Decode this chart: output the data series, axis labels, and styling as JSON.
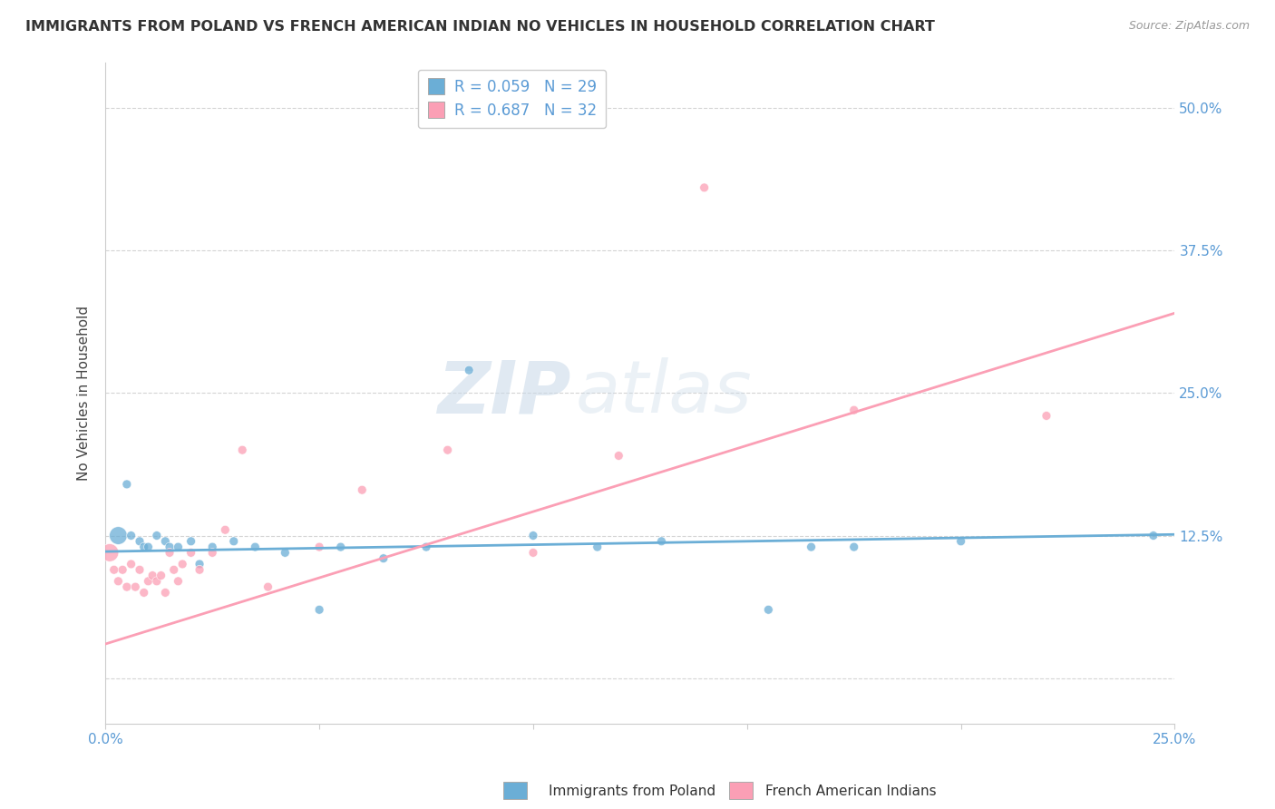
{
  "title": "IMMIGRANTS FROM POLAND VS FRENCH AMERICAN INDIAN NO VEHICLES IN HOUSEHOLD CORRELATION CHART",
  "source": "Source: ZipAtlas.com",
  "ylabel": "No Vehicles in Household",
  "xlim": [
    0.0,
    0.25
  ],
  "ylim": [
    -0.04,
    0.54
  ],
  "ytick_labels": [
    "",
    "12.5%",
    "25.0%",
    "37.5%",
    "50.0%"
  ],
  "ytick_values": [
    0.0,
    0.125,
    0.25,
    0.375,
    0.5
  ],
  "xtick_labels": [
    "0.0%",
    "",
    "",
    "",
    "",
    "25.0%"
  ],
  "xtick_values": [
    0.0,
    0.05,
    0.1,
    0.15,
    0.2,
    0.25
  ],
  "legend_r1": "R = 0.059",
  "legend_n1": "N = 29",
  "legend_r2": "R = 0.687",
  "legend_n2": "N = 32",
  "color_blue": "#6baed6",
  "color_pink": "#fb9fb5",
  "watermark_zip": "ZIP",
  "watermark_atlas": "atlas",
  "blue_scatter_x": [
    0.003,
    0.005,
    0.006,
    0.008,
    0.009,
    0.01,
    0.012,
    0.014,
    0.015,
    0.017,
    0.02,
    0.022,
    0.025,
    0.03,
    0.035,
    0.042,
    0.05,
    0.055,
    0.065,
    0.075,
    0.085,
    0.1,
    0.115,
    0.13,
    0.155,
    0.165,
    0.175,
    0.2,
    0.245
  ],
  "blue_scatter_y": [
    0.125,
    0.17,
    0.125,
    0.12,
    0.115,
    0.115,
    0.125,
    0.12,
    0.115,
    0.115,
    0.12,
    0.1,
    0.115,
    0.12,
    0.115,
    0.11,
    0.06,
    0.115,
    0.105,
    0.115,
    0.27,
    0.125,
    0.115,
    0.12,
    0.06,
    0.115,
    0.115,
    0.12,
    0.125
  ],
  "blue_sizes": [
    200,
    50,
    50,
    50,
    50,
    50,
    50,
    50,
    50,
    50,
    50,
    50,
    50,
    50,
    50,
    50,
    50,
    50,
    50,
    50,
    50,
    50,
    50,
    50,
    50,
    50,
    50,
    50,
    50
  ],
  "pink_scatter_x": [
    0.001,
    0.002,
    0.003,
    0.004,
    0.005,
    0.006,
    0.007,
    0.008,
    0.009,
    0.01,
    0.011,
    0.012,
    0.013,
    0.014,
    0.015,
    0.016,
    0.017,
    0.018,
    0.02,
    0.022,
    0.025,
    0.028,
    0.032,
    0.038,
    0.05,
    0.06,
    0.08,
    0.1,
    0.12,
    0.14,
    0.175,
    0.22
  ],
  "pink_scatter_y": [
    0.11,
    0.095,
    0.085,
    0.095,
    0.08,
    0.1,
    0.08,
    0.095,
    0.075,
    0.085,
    0.09,
    0.085,
    0.09,
    0.075,
    0.11,
    0.095,
    0.085,
    0.1,
    0.11,
    0.095,
    0.11,
    0.13,
    0.2,
    0.08,
    0.115,
    0.165,
    0.2,
    0.11,
    0.195,
    0.43,
    0.235,
    0.23
  ],
  "pink_sizes": [
    200,
    50,
    50,
    50,
    50,
    50,
    50,
    50,
    50,
    50,
    50,
    50,
    50,
    50,
    50,
    50,
    50,
    50,
    50,
    50,
    50,
    50,
    50,
    50,
    50,
    50,
    50,
    50,
    50,
    50,
    50,
    50
  ],
  "blue_line_x": [
    0.0,
    0.25
  ],
  "blue_line_y": [
    0.111,
    0.126
  ],
  "pink_line_x": [
    0.0,
    0.25
  ],
  "pink_line_y": [
    0.03,
    0.32
  ],
  "grid_color": "#d0d0d0",
  "title_fontsize": 11.5,
  "tick_label_color": "#5b9bd5",
  "right_ytick_color": "#5b9bd5"
}
